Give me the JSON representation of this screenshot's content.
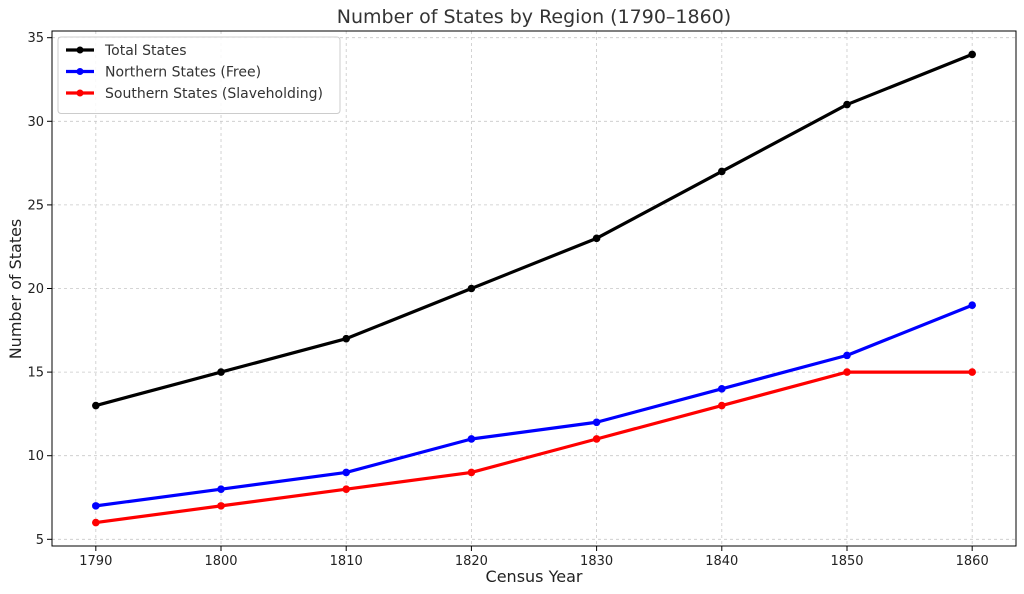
{
  "chart_data": {
    "type": "line",
    "title": "Number of States by Region (1790–1860)",
    "xlabel": "Census Year",
    "ylabel": "Number of States",
    "x": [
      1790,
      1800,
      1810,
      1820,
      1830,
      1840,
      1850,
      1860
    ],
    "xlim": [
      1786.5,
      1863.5
    ],
    "ylim": [
      4.6,
      35.4
    ],
    "yticks": [
      5,
      10,
      15,
      20,
      25,
      30,
      35
    ],
    "grid": true,
    "legend_position": "top-left",
    "series": [
      {
        "name": "Total States",
        "color": "#000000",
        "values": [
          13,
          15,
          17,
          20,
          23,
          27,
          31,
          34
        ]
      },
      {
        "name": "Northern States (Free)",
        "color": "#0000ff",
        "values": [
          7,
          8,
          9,
          11,
          12,
          14,
          16,
          19
        ]
      },
      {
        "name": "Southern States (Slaveholding)",
        "color": "#ff0000",
        "values": [
          6,
          7,
          8,
          9,
          11,
          13,
          15,
          15
        ]
      }
    ]
  }
}
